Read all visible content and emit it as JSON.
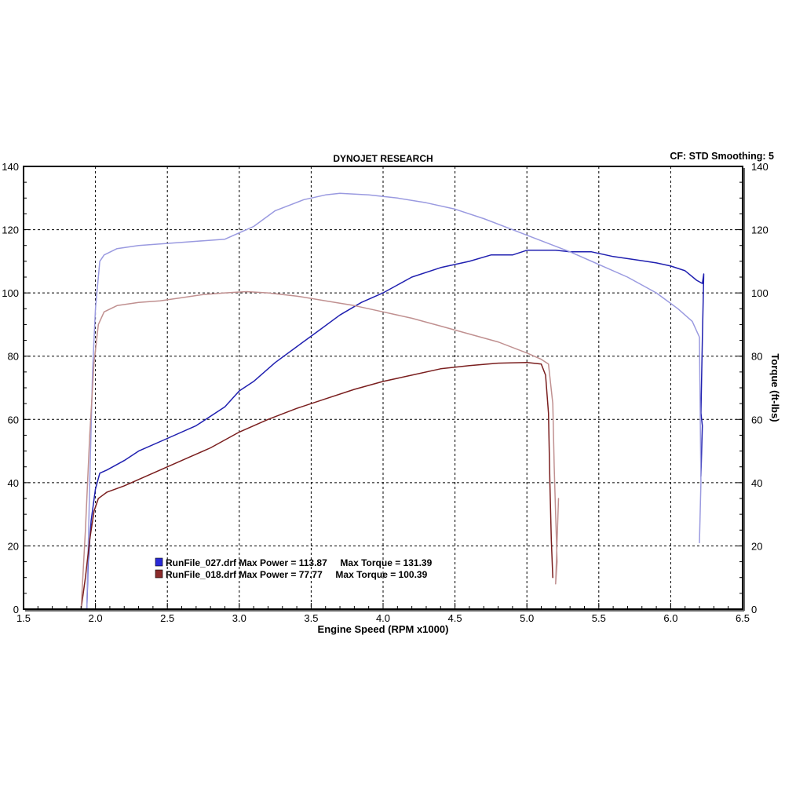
{
  "chart_data": {
    "type": "line",
    "title": "DYNOJET RESEARCH",
    "settings_label": "CF: STD  Smoothing: 5",
    "xlabel": "Engine Speed (RPM x1000)",
    "ylabel_left": "",
    "ylabel_right": "Torque (ft-lbs)",
    "xlim": [
      1.5,
      6.5
    ],
    "ylim": [
      0,
      140
    ],
    "x_ticks": [
      "1.5",
      "2.0",
      "2.5",
      "3.0",
      "3.5",
      "4.0",
      "4.5",
      "5.0",
      "5.5",
      "6.0",
      "6.5"
    ],
    "y_ticks": [
      "0",
      "20",
      "40",
      "60",
      "80",
      "100",
      "120",
      "140"
    ],
    "grid": true,
    "legend_position": "bottom-left",
    "legend": [
      {
        "text": "RunFile_027.drf Max Power = 113.87     Max Torque = 131.39",
        "color": "#2a2ad8"
      },
      {
        "text": "RunFile_018.drf Max Power = 77.77     Max Torque = 100.39",
        "color": "#8b2b2b"
      }
    ],
    "series": [
      {
        "run": "RunFile_027",
        "quantity": "power",
        "color": "#2020b0",
        "points": [
          [
            1.94,
            0
          ],
          [
            1.95,
            15
          ],
          [
            1.97,
            28
          ],
          [
            2.0,
            38
          ],
          [
            2.03,
            43
          ],
          [
            2.08,
            44
          ],
          [
            2.2,
            47
          ],
          [
            2.3,
            50
          ],
          [
            2.5,
            54
          ],
          [
            2.7,
            58
          ],
          [
            2.9,
            64
          ],
          [
            3.0,
            69
          ],
          [
            3.1,
            72
          ],
          [
            3.25,
            78
          ],
          [
            3.4,
            83
          ],
          [
            3.55,
            88
          ],
          [
            3.7,
            93
          ],
          [
            3.85,
            97
          ],
          [
            4.0,
            100
          ],
          [
            4.2,
            105
          ],
          [
            4.4,
            108
          ],
          [
            4.6,
            110
          ],
          [
            4.75,
            112
          ],
          [
            4.9,
            112
          ],
          [
            5.0,
            113.5
          ],
          [
            5.2,
            113.5
          ],
          [
            5.3,
            113
          ],
          [
            5.45,
            113
          ],
          [
            5.6,
            111.5
          ],
          [
            5.75,
            110.5
          ],
          [
            5.9,
            109.5
          ],
          [
            6.0,
            108.5
          ],
          [
            6.1,
            107
          ],
          [
            6.18,
            104
          ],
          [
            6.22,
            103
          ],
          [
            6.23,
            106
          ],
          [
            6.22,
            85
          ],
          [
            6.21,
            62
          ],
          [
            6.22,
            58
          ],
          [
            6.21,
            42
          ]
        ]
      },
      {
        "run": "RunFile_027",
        "quantity": "torque",
        "color": "#9a9ae0",
        "points": [
          [
            1.94,
            0
          ],
          [
            1.96,
            40
          ],
          [
            1.98,
            75
          ],
          [
            2.0,
            95
          ],
          [
            2.03,
            110
          ],
          [
            2.06,
            112
          ],
          [
            2.15,
            114
          ],
          [
            2.3,
            115
          ],
          [
            2.45,
            115.5
          ],
          [
            2.6,
            116
          ],
          [
            2.75,
            116.5
          ],
          [
            2.9,
            117
          ],
          [
            3.0,
            119
          ],
          [
            3.1,
            121
          ],
          [
            3.25,
            126
          ],
          [
            3.45,
            129.5
          ],
          [
            3.6,
            131
          ],
          [
            3.7,
            131.5
          ],
          [
            3.9,
            131
          ],
          [
            4.1,
            130
          ],
          [
            4.3,
            128.5
          ],
          [
            4.5,
            126.5
          ],
          [
            4.7,
            123.5
          ],
          [
            4.9,
            120
          ],
          [
            5.1,
            116.5
          ],
          [
            5.3,
            113
          ],
          [
            5.5,
            109
          ],
          [
            5.7,
            105
          ],
          [
            5.9,
            100
          ],
          [
            6.05,
            95
          ],
          [
            6.15,
            91
          ],
          [
            6.2,
            86
          ],
          [
            6.21,
            40
          ],
          [
            6.2,
            21
          ]
        ]
      },
      {
        "run": "RunFile_018",
        "quantity": "power",
        "color": "#7a1e1e",
        "points": [
          [
            1.9,
            0
          ],
          [
            1.93,
            10
          ],
          [
            1.96,
            22
          ],
          [
            1.99,
            31
          ],
          [
            2.02,
            35
          ],
          [
            2.08,
            37
          ],
          [
            2.2,
            39
          ],
          [
            2.35,
            42
          ],
          [
            2.5,
            45
          ],
          [
            2.65,
            48
          ],
          [
            2.8,
            51
          ],
          [
            3.0,
            56
          ],
          [
            3.2,
            60
          ],
          [
            3.4,
            63.5
          ],
          [
            3.6,
            66.5
          ],
          [
            3.8,
            69.5
          ],
          [
            4.0,
            72
          ],
          [
            4.2,
            74
          ],
          [
            4.4,
            76
          ],
          [
            4.6,
            77
          ],
          [
            4.8,
            77.8
          ],
          [
            5.0,
            78
          ],
          [
            5.1,
            77.5
          ],
          [
            5.13,
            74
          ],
          [
            5.15,
            62
          ],
          [
            5.16,
            40
          ],
          [
            5.17,
            22
          ],
          [
            5.18,
            10
          ]
        ]
      },
      {
        "run": "RunFile_018",
        "quantity": "torque",
        "color": "#c09090",
        "points": [
          [
            1.9,
            0
          ],
          [
            1.93,
            25
          ],
          [
            1.96,
            55
          ],
          [
            1.99,
            78
          ],
          [
            2.02,
            90
          ],
          [
            2.06,
            94
          ],
          [
            2.15,
            96
          ],
          [
            2.3,
            97
          ],
          [
            2.45,
            97.5
          ],
          [
            2.6,
            98.5
          ],
          [
            2.75,
            99.5
          ],
          [
            2.9,
            100
          ],
          [
            3.05,
            100.4
          ],
          [
            3.2,
            100
          ],
          [
            3.4,
            99
          ],
          [
            3.6,
            97.5
          ],
          [
            3.8,
            96
          ],
          [
            4.0,
            94
          ],
          [
            4.2,
            92
          ],
          [
            4.4,
            89.5
          ],
          [
            4.6,
            87
          ],
          [
            4.8,
            84.5
          ],
          [
            5.0,
            81
          ],
          [
            5.1,
            79
          ],
          [
            5.15,
            77.5
          ],
          [
            5.18,
            65
          ],
          [
            5.19,
            45
          ],
          [
            5.2,
            30
          ],
          [
            5.21,
            15
          ],
          [
            5.2,
            8
          ],
          [
            5.22,
            35
          ]
        ]
      }
    ]
  }
}
